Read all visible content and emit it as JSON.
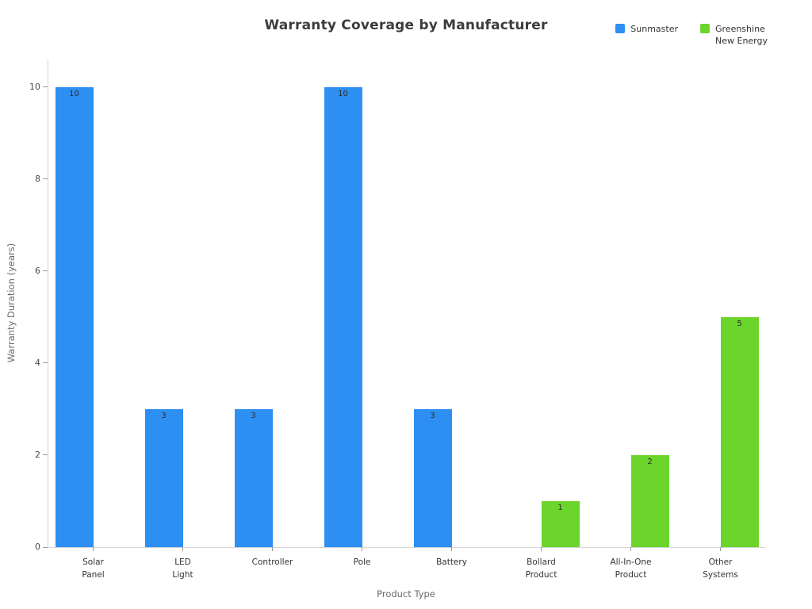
{
  "chart_data": {
    "type": "bar",
    "title": "Warranty Coverage by Manufacturer",
    "xlabel": "Product Type",
    "ylabel": "Warranty Duration (years)",
    "ymax": 10.6,
    "yticks": [
      0,
      2,
      4,
      6,
      8,
      10
    ],
    "categories": [
      [
        "Solar",
        "Panel"
      ],
      [
        "LED",
        "Light"
      ],
      [
        "Controller"
      ],
      [
        "Pole"
      ],
      [
        "Battery"
      ],
      [
        "Bollard",
        "Product"
      ],
      [
        "All-In-One",
        "Product"
      ],
      [
        "Other",
        "Systems"
      ]
    ],
    "series": [
      {
        "name": "Sunmaster",
        "color": "#2e8ff2",
        "values": [
          10,
          3,
          3,
          10,
          3,
          null,
          null,
          null
        ]
      },
      {
        "name": "Greenshine\nNew Energy",
        "color": "#6bd52c",
        "values": [
          null,
          null,
          null,
          null,
          null,
          1,
          2,
          5
        ]
      }
    ],
    "legend_position": "top-right",
    "grid": false
  }
}
